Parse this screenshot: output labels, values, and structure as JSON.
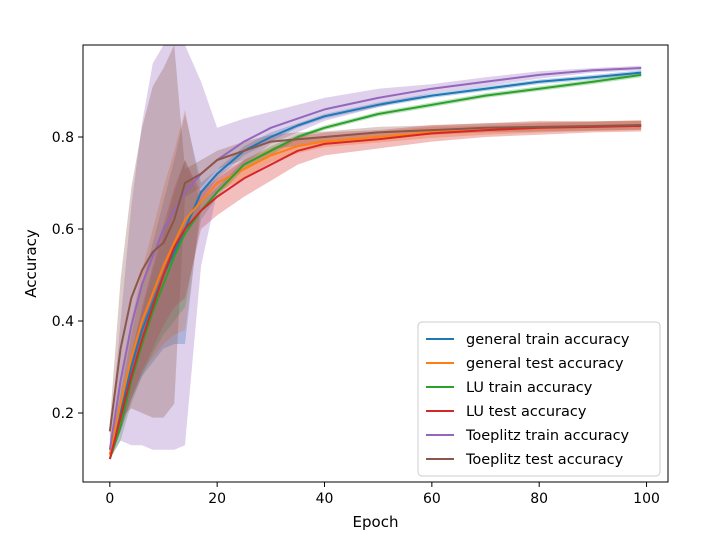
{
  "chart_data": {
    "type": "line",
    "title": "",
    "xlabel": "Epoch",
    "ylabel": "Accuracy",
    "xlim": [
      -5,
      104
    ],
    "ylim": [
      0.05,
      1.0
    ],
    "xticks": [
      0,
      20,
      40,
      60,
      80,
      100
    ],
    "yticks": [
      0.2,
      0.4,
      0.6,
      0.8
    ],
    "xtick_labels": [
      "0",
      "20",
      "40",
      "60",
      "80",
      "100"
    ],
    "ytick_labels": [
      "0.2",
      "0.4",
      "0.6",
      "0.8"
    ],
    "legend_position": "lower-right",
    "grid": false,
    "series": [
      {
        "name": "general train accuracy",
        "color": "#1f77b4",
        "x": [
          0,
          2,
          4,
          6,
          8,
          10,
          12,
          14,
          17,
          20,
          25,
          30,
          35,
          40,
          50,
          60,
          70,
          80,
          90,
          99
        ],
        "values": [
          0.11,
          0.2,
          0.3,
          0.38,
          0.44,
          0.5,
          0.55,
          0.6,
          0.68,
          0.72,
          0.77,
          0.8,
          0.825,
          0.845,
          0.87,
          0.89,
          0.905,
          0.92,
          0.93,
          0.94
        ],
        "band": [
          0.015,
          0.04,
          0.07,
          0.1,
          0.13,
          0.16,
          0.2,
          0.25,
          0.02,
          0.01,
          0.01,
          0.01,
          0.005,
          0.005,
          0.005,
          0.005,
          0.005,
          0.005,
          0.005,
          0.005
        ]
      },
      {
        "name": "general test accuracy",
        "color": "#ff7f0e",
        "x": [
          0,
          2,
          4,
          6,
          8,
          10,
          12,
          14,
          17,
          20,
          25,
          30,
          35,
          40,
          50,
          60,
          70,
          80,
          90,
          99
        ],
        "values": [
          0.11,
          0.22,
          0.32,
          0.4,
          0.46,
          0.52,
          0.57,
          0.62,
          0.66,
          0.7,
          0.73,
          0.76,
          0.78,
          0.79,
          0.8,
          0.81,
          0.815,
          0.82,
          0.823,
          0.825
        ],
        "band": [
          0.015,
          0.05,
          0.08,
          0.11,
          0.14,
          0.17,
          0.2,
          0.24,
          0.02,
          0.02,
          0.02,
          0.015,
          0.015,
          0.012,
          0.012,
          0.012,
          0.01,
          0.01,
          0.01,
          0.01
        ]
      },
      {
        "name": "LU train accuracy",
        "color": "#2ca02c",
        "x": [
          0,
          2,
          4,
          6,
          8,
          10,
          12,
          14,
          17,
          20,
          25,
          30,
          35,
          40,
          50,
          60,
          70,
          80,
          90,
          99
        ],
        "values": [
          0.1,
          0.17,
          0.27,
          0.35,
          0.42,
          0.48,
          0.54,
          0.59,
          0.64,
          0.68,
          0.74,
          0.77,
          0.8,
          0.82,
          0.85,
          0.87,
          0.89,
          0.905,
          0.92,
          0.935
        ],
        "band": [
          0.01,
          0.03,
          0.05,
          0.07,
          0.09,
          0.11,
          0.14,
          0.16,
          0.02,
          0.01,
          0.01,
          0.01,
          0.005,
          0.005,
          0.005,
          0.005,
          0.005,
          0.005,
          0.005,
          0.005
        ]
      },
      {
        "name": "LU test accuracy",
        "color": "#d62728",
        "x": [
          0,
          2,
          4,
          6,
          8,
          10,
          12,
          14,
          17,
          20,
          25,
          30,
          35,
          40,
          50,
          60,
          70,
          80,
          90,
          99
        ],
        "values": [
          0.1,
          0.19,
          0.28,
          0.36,
          0.43,
          0.5,
          0.56,
          0.6,
          0.64,
          0.67,
          0.71,
          0.74,
          0.77,
          0.785,
          0.795,
          0.808,
          0.815,
          0.82,
          0.822,
          0.824
        ],
        "band": [
          0.01,
          0.03,
          0.05,
          0.07,
          0.09,
          0.11,
          0.13,
          0.15,
          0.04,
          0.04,
          0.04,
          0.035,
          0.03,
          0.025,
          0.02,
          0.018,
          0.015,
          0.015,
          0.012,
          0.012
        ]
      },
      {
        "name": "Toeplitz train accuracy",
        "color": "#9467bd",
        "x": [
          0,
          2,
          4,
          6,
          8,
          10,
          12,
          14,
          17,
          20,
          25,
          30,
          35,
          40,
          50,
          60,
          70,
          80,
          90,
          99
        ],
        "values": [
          0.12,
          0.27,
          0.39,
          0.48,
          0.54,
          0.6,
          0.64,
          0.68,
          0.72,
          0.75,
          0.79,
          0.82,
          0.84,
          0.86,
          0.885,
          0.905,
          0.92,
          0.935,
          0.945,
          0.95
        ],
        "band": [
          0.02,
          0.13,
          0.26,
          0.35,
          0.42,
          0.48,
          0.52,
          0.55,
          0.2,
          0.07,
          0.05,
          0.035,
          0.03,
          0.025,
          0.02,
          0.01,
          0.01,
          0.008,
          0.005,
          0.005
        ]
      },
      {
        "name": "Toeplitz test accuracy",
        "color": "#8c564b",
        "x": [
          0,
          2,
          4,
          6,
          8,
          10,
          12,
          14,
          17,
          20,
          25,
          30,
          35,
          40,
          50,
          60,
          70,
          80,
          90,
          99
        ],
        "values": [
          0.16,
          0.34,
          0.45,
          0.51,
          0.55,
          0.57,
          0.62,
          0.7,
          0.72,
          0.75,
          0.77,
          0.79,
          0.795,
          0.8,
          0.81,
          0.815,
          0.82,
          0.822,
          0.824,
          0.826
        ],
        "band": [
          0.02,
          0.15,
          0.24,
          0.31,
          0.36,
          0.38,
          0.4,
          0.03,
          0.03,
          0.02,
          0.02,
          0.015,
          0.015,
          0.012,
          0.012,
          0.01,
          0.01,
          0.01,
          0.01,
          0.01
        ]
      }
    ]
  }
}
